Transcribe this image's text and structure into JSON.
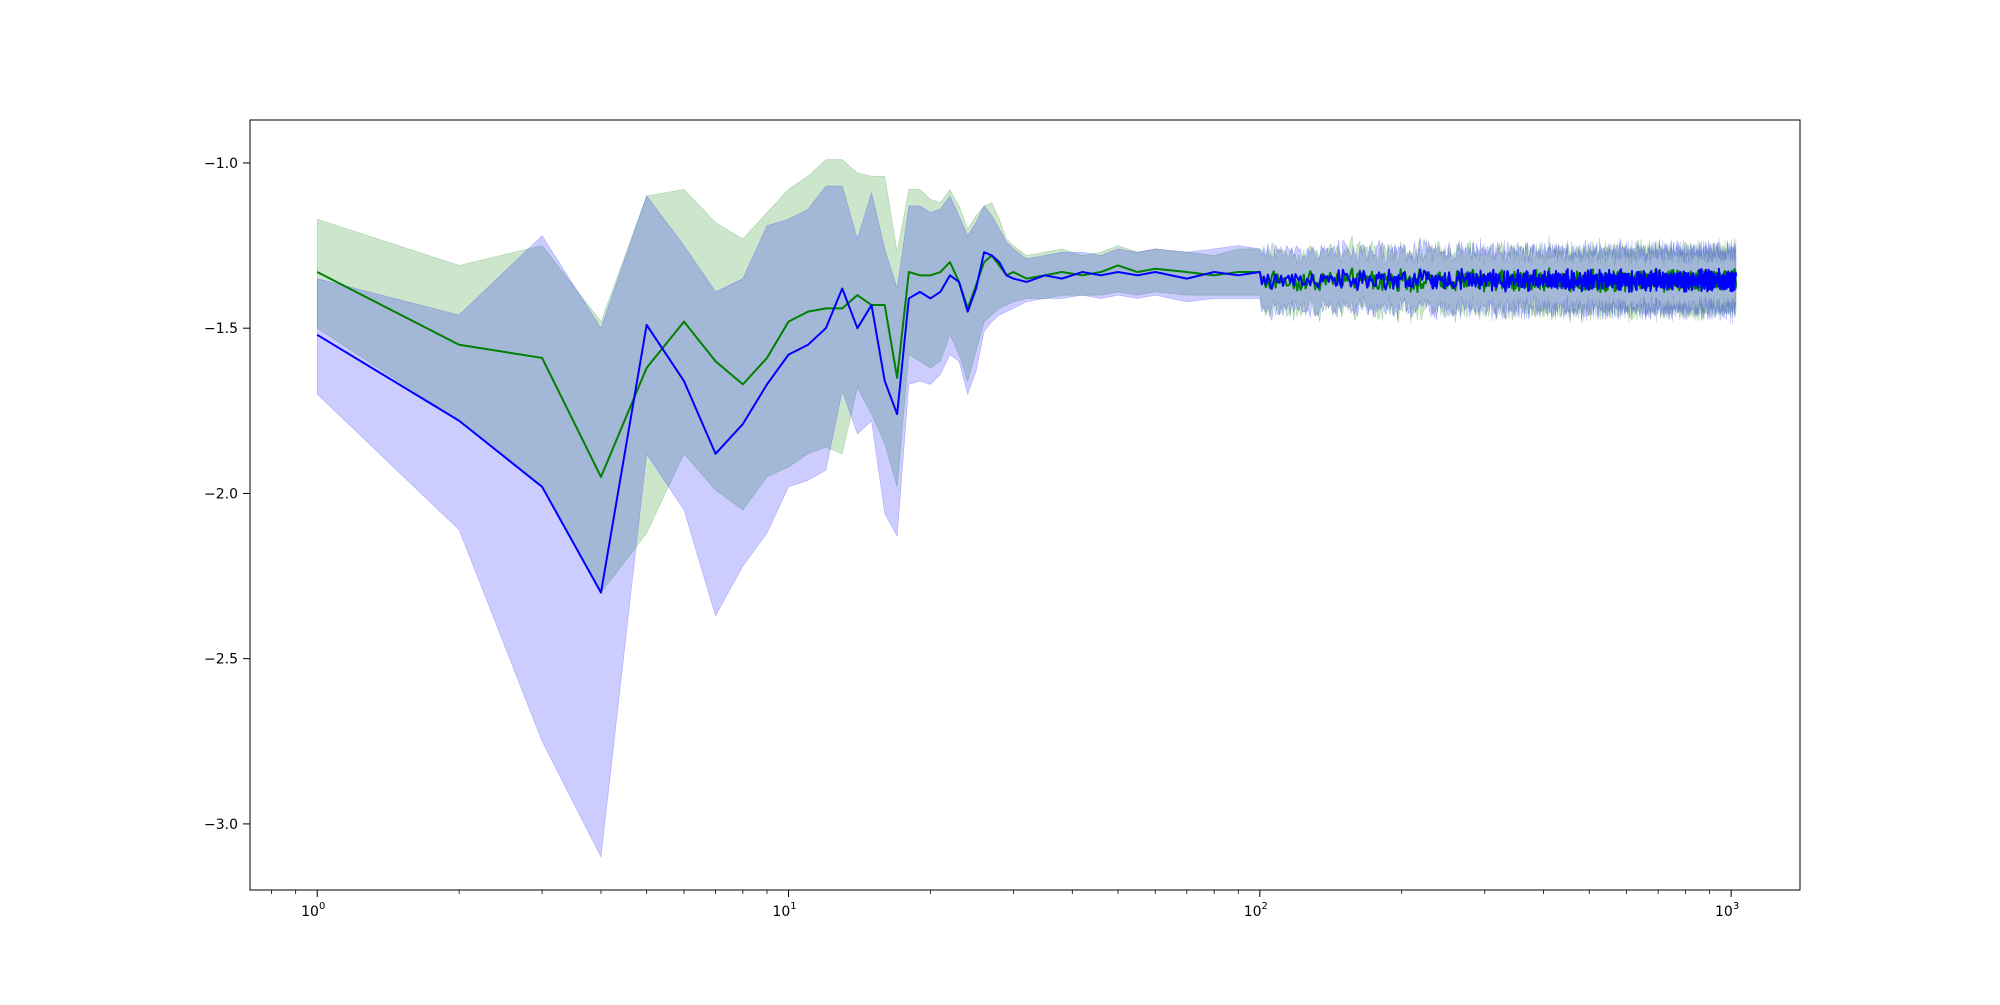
{
  "chart_data": {
    "type": "line",
    "title": "",
    "xlabel": "",
    "ylabel": "",
    "xscale": "log",
    "xlim": [
      0.72,
      1400
    ],
    "ylim": [
      -3.2,
      -0.87
    ],
    "grid": false,
    "legend": "none",
    "x_ticks": [
      {
        "value": 1,
        "base": "10",
        "exp": "0"
      },
      {
        "value": 10,
        "base": "10",
        "exp": "1"
      },
      {
        "value": 100,
        "base": "10",
        "exp": "2"
      },
      {
        "value": 1000,
        "base": "10",
        "exp": "3"
      }
    ],
    "y_ticks": [
      {
        "value": -1.0,
        "label": "−1.0"
      },
      {
        "value": -1.5,
        "label": "−1.5"
      },
      {
        "value": -2.0,
        "label": "−2.0"
      },
      {
        "value": -2.5,
        "label": "−2.5"
      },
      {
        "value": -3.0,
        "label": "−3.0"
      }
    ],
    "series": [
      {
        "color": "#008000",
        "band_color": "#008000",
        "band_opacity": 0.2,
        "x": [
          1,
          2,
          3,
          4,
          5,
          6,
          7,
          8,
          9,
          10,
          11,
          12,
          13,
          14,
          15,
          16,
          17,
          18,
          19,
          20,
          21,
          22,
          23,
          24,
          25,
          26,
          27,
          28,
          29,
          30,
          32,
          35,
          38,
          42,
          46,
          50,
          55,
          60,
          70,
          80,
          90,
          100
        ],
        "y": [
          -1.33,
          -1.55,
          -1.59,
          -1.95,
          -1.62,
          -1.48,
          -1.6,
          -1.67,
          -1.59,
          -1.48,
          -1.45,
          -1.44,
          -1.44,
          -1.4,
          -1.43,
          -1.43,
          -1.65,
          -1.33,
          -1.34,
          -1.34,
          -1.33,
          -1.3,
          -1.36,
          -1.44,
          -1.37,
          -1.3,
          -1.28,
          -1.31,
          -1.34,
          -1.33,
          -1.35,
          -1.34,
          -1.33,
          -1.34,
          -1.33,
          -1.31,
          -1.33,
          -1.32,
          -1.33,
          -1.34,
          -1.33,
          -1.33
        ],
        "lower": [
          -1.5,
          -1.78,
          -1.98,
          -2.3,
          -2.12,
          -1.88,
          -1.99,
          -2.05,
          -1.95,
          -1.92,
          -1.88,
          -1.86,
          -1.88,
          -1.68,
          -1.76,
          -1.85,
          -1.98,
          -1.58,
          -1.6,
          -1.62,
          -1.6,
          -1.52,
          -1.58,
          -1.66,
          -1.57,
          -1.48,
          -1.46,
          -1.44,
          -1.43,
          -1.42,
          -1.41,
          -1.41,
          -1.4,
          -1.4,
          -1.4,
          -1.39,
          -1.4,
          -1.39,
          -1.4,
          -1.4,
          -1.4,
          -1.4
        ],
        "upper": [
          -1.17,
          -1.31,
          -1.25,
          -1.48,
          -1.1,
          -1.08,
          -1.18,
          -1.23,
          -1.15,
          -1.08,
          -1.04,
          -0.99,
          -0.99,
          -1.03,
          -1.04,
          -1.04,
          -1.27,
          -1.08,
          -1.08,
          -1.11,
          -1.12,
          -1.08,
          -1.13,
          -1.2,
          -1.16,
          -1.13,
          -1.12,
          -1.17,
          -1.23,
          -1.25,
          -1.28,
          -1.27,
          -1.26,
          -1.28,
          -1.27,
          -1.25,
          -1.27,
          -1.26,
          -1.27,
          -1.28,
          -1.26,
          -1.26
        ]
      },
      {
        "color": "#0000ff",
        "band_color": "#0000ff",
        "band_opacity": 0.2,
        "x": [
          1,
          2,
          3,
          4,
          5,
          6,
          7,
          8,
          9,
          10,
          11,
          12,
          13,
          14,
          15,
          16,
          17,
          18,
          19,
          20,
          21,
          22,
          23,
          24,
          25,
          26,
          27,
          28,
          29,
          30,
          32,
          35,
          38,
          42,
          46,
          50,
          55,
          60,
          70,
          80,
          90,
          100
        ],
        "y": [
          -1.52,
          -1.78,
          -1.98,
          -2.3,
          -1.49,
          -1.66,
          -1.88,
          -1.79,
          -1.67,
          -1.58,
          -1.55,
          -1.5,
          -1.38,
          -1.5,
          -1.43,
          -1.66,
          -1.76,
          -1.41,
          -1.39,
          -1.41,
          -1.39,
          -1.34,
          -1.36,
          -1.45,
          -1.38,
          -1.27,
          -1.28,
          -1.3,
          -1.34,
          -1.35,
          -1.36,
          -1.34,
          -1.35,
          -1.33,
          -1.34,
          -1.33,
          -1.34,
          -1.33,
          -1.35,
          -1.33,
          -1.34,
          -1.33
        ],
        "lower": [
          -1.7,
          -2.11,
          -2.75,
          -3.1,
          -1.88,
          -2.05,
          -2.37,
          -2.22,
          -2.12,
          -1.98,
          -1.96,
          -1.93,
          -1.69,
          -1.82,
          -1.78,
          -2.06,
          -2.13,
          -1.67,
          -1.66,
          -1.67,
          -1.64,
          -1.58,
          -1.6,
          -1.7,
          -1.63,
          -1.51,
          -1.48,
          -1.46,
          -1.45,
          -1.44,
          -1.42,
          -1.41,
          -1.41,
          -1.4,
          -1.41,
          -1.4,
          -1.41,
          -1.4,
          -1.42,
          -1.41,
          -1.41,
          -1.41
        ],
        "upper": [
          -1.35,
          -1.46,
          -1.22,
          -1.5,
          -1.1,
          -1.25,
          -1.39,
          -1.35,
          -1.19,
          -1.17,
          -1.14,
          -1.07,
          -1.07,
          -1.23,
          -1.09,
          -1.26,
          -1.38,
          -1.13,
          -1.13,
          -1.15,
          -1.14,
          -1.1,
          -1.16,
          -1.22,
          -1.18,
          -1.13,
          -1.16,
          -1.2,
          -1.24,
          -1.26,
          -1.29,
          -1.28,
          -1.27,
          -1.27,
          -1.28,
          -1.26,
          -1.27,
          -1.26,
          -1.27,
          -1.26,
          -1.25,
          -1.26
        ]
      }
    ],
    "tail": {
      "x_start": 100,
      "x_end": 1024,
      "center": -1.355,
      "line_spread": 0.025,
      "band_halfwidth": 0.075
    }
  }
}
